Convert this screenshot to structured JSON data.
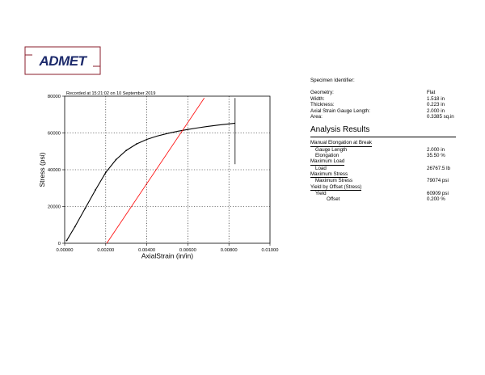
{
  "logo": {
    "text": "ADMET"
  },
  "chart_data": {
    "type": "line",
    "title": "Recorded at 15:21:02 on 10 September 2019",
    "xlabel": "AxialStrain (in/in)",
    "ylabel": "Stress (psi)",
    "xlim": [
      0,
      0.01
    ],
    "ylim": [
      0,
      80000
    ],
    "grid": true,
    "x_ticks": [
      0,
      0.002,
      0.004,
      0.006,
      0.008,
      0.01
    ],
    "x_tick_labels": [
      "0.00000",
      "0.00200",
      "0.00400",
      "0.00600",
      "0.00800",
      "0.01000"
    ],
    "y_ticks": [
      0,
      20000,
      40000,
      60000,
      80000
    ],
    "y_tick_labels": [
      "0",
      "20000",
      "40000",
      "60000",
      "80000"
    ],
    "series": [
      {
        "color": "#000000",
        "x": [
          0.0001,
          0.0005,
          0.001,
          0.0015,
          0.002,
          0.0025,
          0.003,
          0.0035,
          0.004,
          0.0045,
          0.005,
          0.0055,
          0.006,
          0.0065,
          0.007,
          0.0075,
          0.008,
          0.0083
        ],
        "y": [
          1500,
          9000,
          19000,
          29000,
          38500,
          45500,
          50500,
          54000,
          56500,
          58300,
          59700,
          60900,
          61900,
          62800,
          63600,
          64300,
          64900,
          65300
        ]
      },
      {
        "color": "#ff0000",
        "x": [
          0.00205,
          0.0068
        ],
        "y": [
          0,
          79000
        ]
      }
    ],
    "break_line": {
      "x": 0.0083,
      "y_from": 43000,
      "y_to": 79000,
      "color": "#000000"
    }
  },
  "specimen": {
    "identifier_label": "Specimen Identifier:",
    "rows": [
      {
        "label": "Geometry:",
        "value": "Flat"
      },
      {
        "label": "Width:",
        "value": "1.518 in"
      },
      {
        "label": "Thickness:",
        "value": "0.223 in"
      },
      {
        "label": "Axial Strain Gauge Length:",
        "value": "2.000 in"
      },
      {
        "label": "Area:",
        "value": "0.3385 sq.in"
      }
    ]
  },
  "results": {
    "title": "Analysis Results",
    "manual_elongation": {
      "header": "Manual Elongation at Break",
      "gauge_length_label": "Gauge Length",
      "gauge_length_value": "2.000 in",
      "elongation_label": "Elongation",
      "elongation_value": "35.50 %"
    },
    "maximum_load": {
      "header": "Maximum Load",
      "load_label": "Load",
      "load_value": "26767.5 lb"
    },
    "maximum_stress": {
      "header": "Maximum Stress",
      "stress_label": "Maximum Stress",
      "stress_value": "79074 psi"
    },
    "yield_offset": {
      "header": "Yield by Offset (Stress)",
      "yield_label": "Yield",
      "yield_value": "60909 psi",
      "offset_label": "Offset",
      "offset_value": "0.200 %"
    }
  }
}
